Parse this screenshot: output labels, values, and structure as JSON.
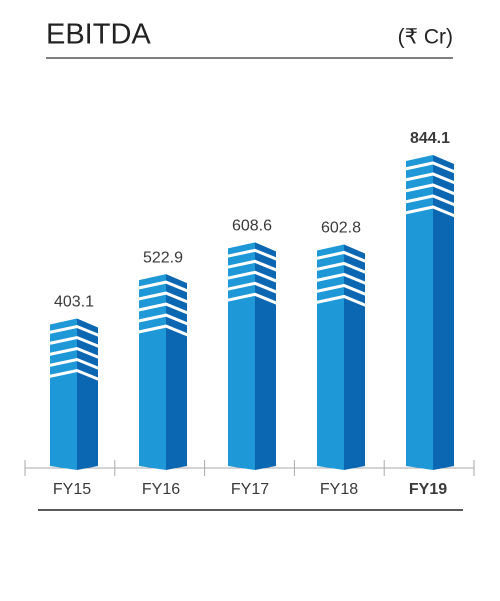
{
  "chart_data": {
    "type": "bar",
    "title": "EBITDA",
    "subtitle": "(₹ Cr)",
    "categories": [
      "FY15",
      "FY16",
      "FY17",
      "FY18",
      "FY19"
    ],
    "values": [
      403.1,
      522.9,
      608.6,
      602.8,
      844.1
    ],
    "color": "#1e98d7",
    "side_color": "#0b67b2"
  }
}
